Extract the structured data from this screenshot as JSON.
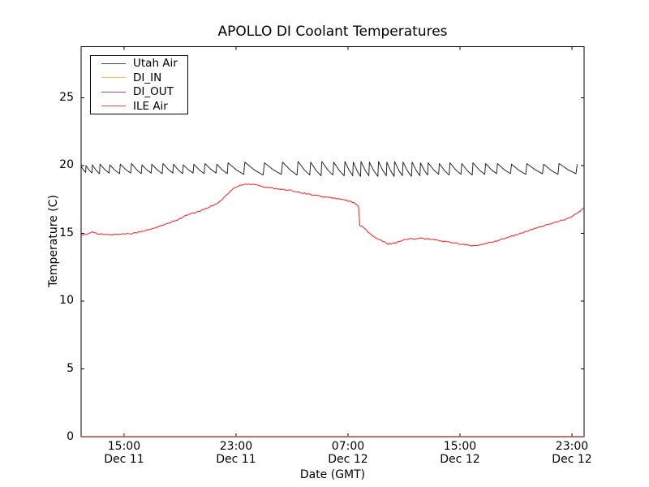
{
  "title": "APOLLO DI Coolant Temperatures",
  "axes": {
    "xlabel": "Date (GMT)",
    "ylabel": "Temperature (C)"
  },
  "legend": {
    "items": [
      {
        "label": "Utah Air",
        "color": "#000000"
      },
      {
        "label": "DI_IN",
        "color": "#ffa500"
      },
      {
        "label": "DI_OUT",
        "color": "#800080"
      },
      {
        "label": "ILE Air",
        "color": "#ff0000"
      }
    ]
  },
  "chart_data": {
    "type": "line",
    "title": "APOLLO DI Coolant Temperatures",
    "xlabel": "Date (GMT)",
    "ylabel": "Temperature (C)",
    "x_unit": "hours since Dec 11 00:00 GMT",
    "xlim": [
      11.93,
      47.87
    ],
    "ylim": [
      0,
      28.77
    ],
    "grid": false,
    "legend_position": "upper left",
    "x_ticks": [
      {
        "t": 15,
        "time": "15:00",
        "date": "Dec 11"
      },
      {
        "t": 23,
        "time": "23:00",
        "date": "Dec 11"
      },
      {
        "t": 31,
        "time": "07:00",
        "date": "Dec 12"
      },
      {
        "t": 39,
        "time": "15:00",
        "date": "Dec 12"
      },
      {
        "t": 47,
        "time": "23:00",
        "date": "Dec 12"
      }
    ],
    "y_ticks": [
      0,
      5,
      10,
      15,
      20,
      25
    ],
    "series": [
      {
        "name": "Utah Air",
        "color": "#000000",
        "type": "sawtooth",
        "description": "HVAC cycling: sawtooth between ~19.2 and ~20.3 C",
        "cycles": [
          [
            0.35,
            19.95,
            19.5
          ],
          [
            0.45,
            20.0,
            19.45
          ],
          [
            0.55,
            20.05,
            19.4
          ],
          [
            0.7,
            20.1,
            19.45
          ],
          [
            0.75,
            20.05,
            19.4
          ],
          [
            0.8,
            20.1,
            19.45
          ],
          [
            0.75,
            20.15,
            19.4
          ],
          [
            0.7,
            20.05,
            19.45
          ],
          [
            0.8,
            20.1,
            19.4
          ],
          [
            0.75,
            20.15,
            19.45
          ],
          [
            0.7,
            20.1,
            19.4
          ],
          [
            0.75,
            20.05,
            19.45
          ],
          [
            0.8,
            20.1,
            19.4
          ],
          [
            0.85,
            20.15,
            19.45
          ],
          [
            0.8,
            20.1,
            19.4
          ],
          [
            1.2,
            20.2,
            19.35
          ],
          [
            1.4,
            20.25,
            19.3
          ],
          [
            1.3,
            20.2,
            19.35
          ],
          [
            1.1,
            20.25,
            19.3
          ],
          [
            0.9,
            20.3,
            19.3
          ],
          [
            0.8,
            20.25,
            19.25
          ],
          [
            0.85,
            20.3,
            19.3
          ],
          [
            0.8,
            20.25,
            19.25
          ],
          [
            0.6,
            20.3,
            19.25
          ],
          [
            0.55,
            20.25,
            19.2
          ],
          [
            0.6,
            20.3,
            19.25
          ],
          [
            0.65,
            20.25,
            19.2
          ],
          [
            0.6,
            20.3,
            19.25
          ],
          [
            0.55,
            20.25,
            19.2
          ],
          [
            0.6,
            20.3,
            19.25
          ],
          [
            0.65,
            20.25,
            19.2
          ],
          [
            0.6,
            20.25,
            19.25
          ],
          [
            0.55,
            20.2,
            19.3
          ],
          [
            0.8,
            20.2,
            19.35
          ],
          [
            0.75,
            20.15,
            19.3
          ],
          [
            0.85,
            20.2,
            19.35
          ],
          [
            0.8,
            20.15,
            19.3
          ],
          [
            0.9,
            20.2,
            19.35
          ],
          [
            0.85,
            20.15,
            19.4
          ],
          [
            1.0,
            20.15,
            19.4
          ],
          [
            1.1,
            20.1,
            19.35
          ],
          [
            1.2,
            20.15,
            19.4
          ],
          [
            1.1,
            20.1,
            19.35
          ],
          [
            1.3,
            20.15,
            19.4
          ],
          [
            1.2,
            20.1,
            19.4
          ]
        ]
      },
      {
        "name": "DI_IN",
        "color": "#ffa500",
        "type": "constant",
        "value": 0
      },
      {
        "name": "DI_OUT",
        "color": "#800080",
        "type": "constant",
        "value": 0
      },
      {
        "name": "ILE Air",
        "color": "#ff0000",
        "type": "points",
        "noise": 0.045,
        "points": [
          [
            11.93,
            14.85
          ],
          [
            12.3,
            14.9
          ],
          [
            12.75,
            15.15
          ],
          [
            13.1,
            14.95
          ],
          [
            13.9,
            14.9
          ],
          [
            14.8,
            14.95
          ],
          [
            15.5,
            15.0
          ],
          [
            16.2,
            15.1
          ],
          [
            17.0,
            15.35
          ],
          [
            17.8,
            15.6
          ],
          [
            18.6,
            15.9
          ],
          [
            19.5,
            16.35
          ],
          [
            20.3,
            16.6
          ],
          [
            21.0,
            16.9
          ],
          [
            21.8,
            17.3
          ],
          [
            22.3,
            17.8
          ],
          [
            22.8,
            18.3
          ],
          [
            23.3,
            18.55
          ],
          [
            23.9,
            18.65
          ],
          [
            24.5,
            18.6
          ],
          [
            25.0,
            18.4
          ],
          [
            25.5,
            18.35
          ],
          [
            26.0,
            18.3
          ],
          [
            26.5,
            18.2
          ],
          [
            27.0,
            18.15
          ],
          [
            27.7,
            18.0
          ],
          [
            28.4,
            17.85
          ],
          [
            29.2,
            17.7
          ],
          [
            30.0,
            17.6
          ],
          [
            30.8,
            17.45
          ],
          [
            31.3,
            17.3
          ],
          [
            31.75,
            17.05
          ],
          [
            31.85,
            15.6
          ],
          [
            32.2,
            15.35
          ],
          [
            32.8,
            14.75
          ],
          [
            33.4,
            14.45
          ],
          [
            33.85,
            14.22
          ],
          [
            34.4,
            14.3
          ],
          [
            34.9,
            14.5
          ],
          [
            35.5,
            14.6
          ],
          [
            36.1,
            14.65
          ],
          [
            37.0,
            14.55
          ],
          [
            37.8,
            14.42
          ],
          [
            38.7,
            14.28
          ],
          [
            39.55,
            14.12
          ],
          [
            40.15,
            14.08
          ],
          [
            40.7,
            14.2
          ],
          [
            41.6,
            14.45
          ],
          [
            42.5,
            14.72
          ],
          [
            43.35,
            15.0
          ],
          [
            44.2,
            15.3
          ],
          [
            45.1,
            15.6
          ],
          [
            46.0,
            15.85
          ],
          [
            46.8,
            16.15
          ],
          [
            47.4,
            16.5
          ],
          [
            47.87,
            16.9
          ]
        ]
      }
    ]
  }
}
